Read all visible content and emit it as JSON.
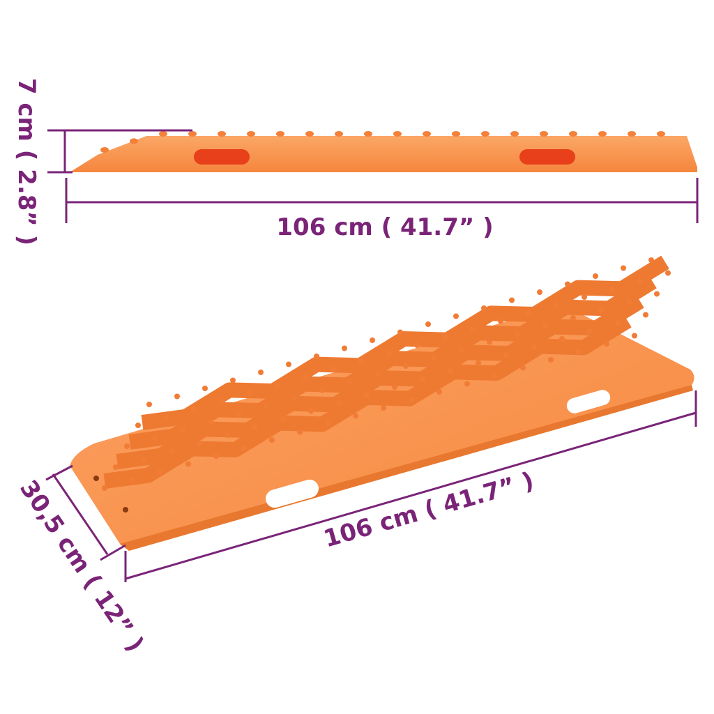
{
  "colors": {
    "dimension": "#7a2478",
    "board": "#f9904a",
    "board_dark": "#e8782f",
    "hole": "#e8401a"
  },
  "top_view": {
    "height_label": "7 cm ( 2.8” )",
    "length_label": "106 cm ( 41.7” )"
  },
  "perspective_view": {
    "width_label": "30,5 cm ( 12” )",
    "length_label": "106 cm ( 41.7” )"
  }
}
